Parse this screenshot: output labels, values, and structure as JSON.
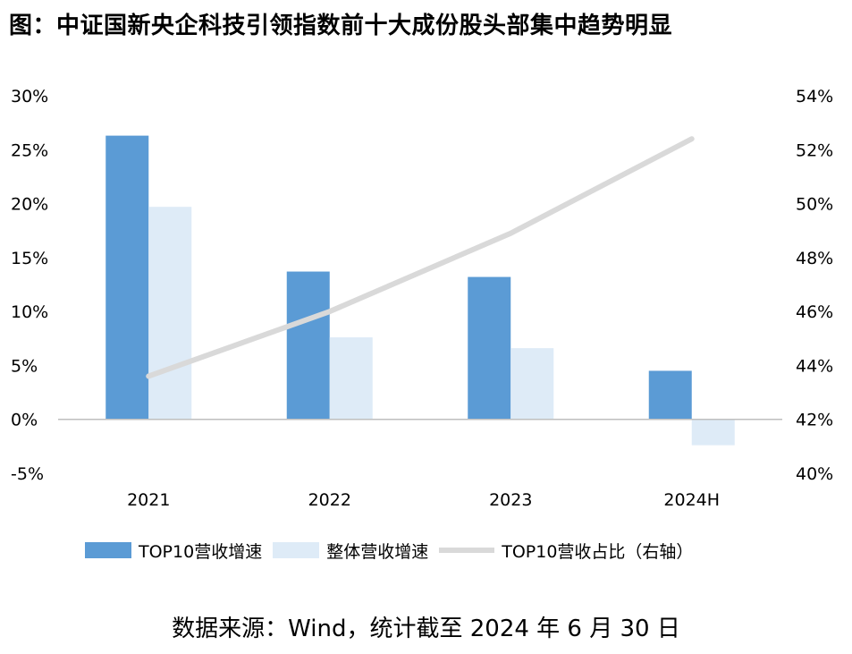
{
  "title": "图：中证国新央企科技引领指数前十大成份股头部集中趋势明显",
  "source": "数据来源：Wind，统计截至 2024 年 6 月 30 日",
  "colors": {
    "top10_growth": "#5b9bd5",
    "overall_growth": "#deebf7",
    "top10_share": "#d9d9d9"
  },
  "chart_data": {
    "type": "bar",
    "categories": [
      "2021",
      "2022",
      "2023",
      "2024H"
    ],
    "series": [
      {
        "name": "TOP10营收增速",
        "type": "bar",
        "axis": "left",
        "values": [
          26.3,
          13.7,
          13.2,
          4.5
        ]
      },
      {
        "name": "整体营收增速",
        "type": "bar",
        "axis": "left",
        "values": [
          19.7,
          7.6,
          6.6,
          -2.4
        ]
      },
      {
        "name": "TOP10营收占比（右轴）",
        "type": "line",
        "axis": "right",
        "values": [
          43.6,
          46.0,
          48.9,
          52.4
        ]
      }
    ],
    "y_left": {
      "ylim": [
        -5,
        30
      ],
      "ticks": [
        -5,
        0,
        5,
        10,
        15,
        20,
        25,
        30
      ],
      "tick_labels": [
        "-5%",
        "0%",
        "5%",
        "10%",
        "15%",
        "20%",
        "25%",
        "30%"
      ]
    },
    "y_right": {
      "ylim": [
        40,
        54
      ],
      "ticks": [
        40,
        42,
        44,
        46,
        48,
        50,
        52,
        54
      ],
      "tick_labels": [
        "40%",
        "42%",
        "44%",
        "46%",
        "48%",
        "50%",
        "52%",
        "54%"
      ]
    },
    "grid": false,
    "legend_position": "bottom"
  }
}
